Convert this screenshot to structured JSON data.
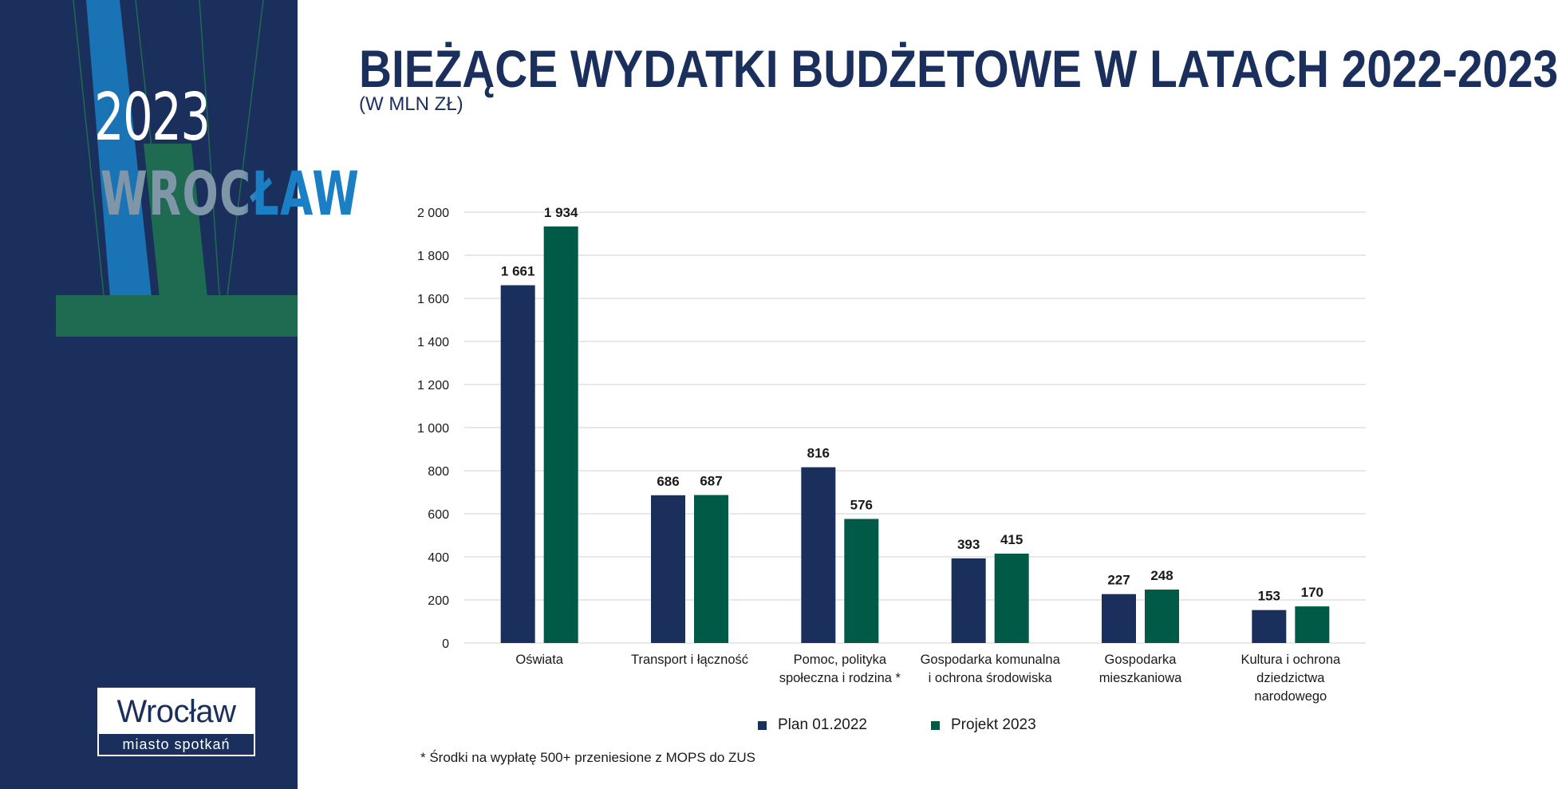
{
  "sidebar": {
    "year": "2023",
    "city": "WROCŁAW",
    "logo_name": "Wrocław",
    "logo_tagline": "miasto spotkań"
  },
  "colors": {
    "sidebar_bg": "#1a2f5b",
    "plan": "#1a2f5b",
    "projekt": "#005a45",
    "accent_green": "#1f6b52",
    "accent_blue": "#1a7fc4",
    "grid": "#d9d9d9"
  },
  "chart_data": {
    "type": "bar",
    "title": "BIEŻĄCE WYDATKI BUDŻETOWE W LATACH 2022-2023",
    "subtitle": "(W MLN ZŁ)",
    "categories": [
      [
        "Oświata"
      ],
      [
        "Transport i łączność"
      ],
      [
        "Pomoc, polityka",
        "społeczna i rodzina *"
      ],
      [
        "Gospodarka komunalna",
        "i ochrona środowiska"
      ],
      [
        "Gospodarka",
        "mieszkaniowa"
      ],
      [
        "Kultura i ochrona",
        "dziedzictwa",
        "narodowego"
      ]
    ],
    "series": [
      {
        "name": "Plan 01.2022",
        "color": "#1a2f5b",
        "values": [
          1661,
          686,
          816,
          393,
          227,
          153
        ],
        "labels": [
          "1 661",
          "686",
          "816",
          "393",
          "227",
          "153"
        ]
      },
      {
        "name": "Projekt 2023",
        "color": "#005a45",
        "values": [
          1934,
          687,
          576,
          415,
          248,
          170
        ],
        "labels": [
          "1 934",
          "687",
          "576",
          "415",
          "248",
          "170"
        ]
      }
    ],
    "ylim": [
      0,
      2000
    ],
    "yticks": [
      0,
      200,
      400,
      600,
      800,
      1000,
      1200,
      1400,
      1600,
      1800,
      2000
    ],
    "ytick_labels": [
      "0",
      "200",
      "400",
      "600",
      "800",
      "1 000",
      "1 200",
      "1 400",
      "1 600",
      "1 800",
      "2 000"
    ],
    "grid": true,
    "legend": "bottom"
  },
  "footnote": "* Środki na wypłatę 500+ przeniesione z MOPS do ZUS"
}
